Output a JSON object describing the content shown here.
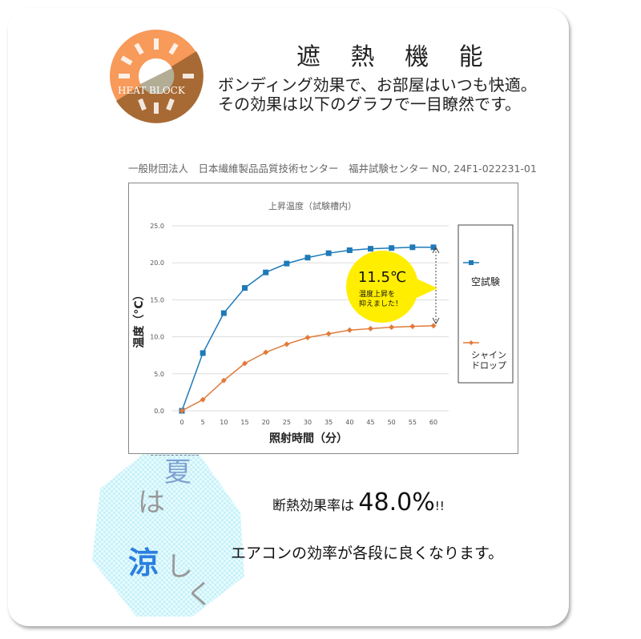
{
  "header": {
    "title": "遮 熱 機 能",
    "line1": "ボンディング効果で、お部屋はいつも快適。",
    "line2": "その効果は以下のグラフで一目瞭然です。",
    "logo_text": "HEAT BLOCK"
  },
  "source": {
    "org": "一般財団法人　日本繊維製品品質技術センター　福井試験センター",
    "report_no": "NO, 24F1-022231-01"
  },
  "chart_data": {
    "type": "line",
    "title": "上昇温度（試験槽内）",
    "xlabel": "照射時間（分）",
    "ylabel": "温度（°C）",
    "x": [
      0,
      5,
      10,
      15,
      20,
      25,
      30,
      35,
      40,
      45,
      50,
      55,
      60
    ],
    "ylim": [
      0,
      25
    ],
    "yticks": [
      "0.0",
      "5.0",
      "10.0",
      "15.0",
      "20.0",
      "25.0"
    ],
    "grid": true,
    "legend": "right",
    "series": [
      {
        "name": "空試験",
        "color": "#1f7ab8",
        "marker": "square",
        "values": [
          0,
          7.8,
          13.2,
          16.6,
          18.7,
          19.9,
          20.7,
          21.3,
          21.7,
          21.9,
          22.0,
          22.1,
          22.1
        ]
      },
      {
        "name": "シャイン\nドロップ",
        "color": "#e07a3a",
        "marker": "diamond",
        "values": [
          0,
          1.5,
          4.1,
          6.4,
          7.9,
          9.0,
          9.9,
          10.4,
          10.9,
          11.1,
          11.3,
          11.4,
          11.5
        ]
      }
    ],
    "annotation": {
      "value": "11.5℃",
      "text1": "温度上昇を",
      "text2": "抑えました！",
      "color": "#ffee00"
    }
  },
  "legend": {
    "s1": "空試験",
    "s2a": "シャイン",
    "s2b": "ドロップ"
  },
  "highlight": {
    "label": "断熱効果率は",
    "value": "48.0%",
    "excl": "!!"
  },
  "body": {
    "text": "エアコンの効率が各段に良くなります。"
  },
  "deco": {
    "c1": "夏",
    "c2": "は",
    "c3": "涼",
    "c4": "し",
    "c5": "く"
  }
}
